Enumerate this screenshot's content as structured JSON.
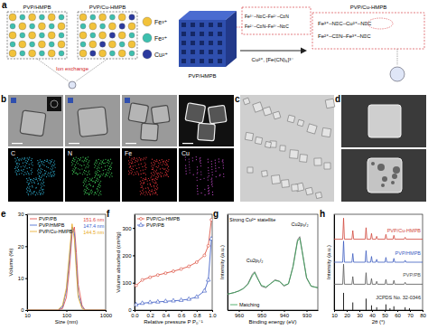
{
  "panel_labels": [
    "a",
    "b",
    "c",
    "d",
    "e",
    "f",
    "g",
    "h"
  ],
  "schematic": {
    "left_labels": [
      "PVP/HMPB",
      "PVP/Cu-HMPB"
    ],
    "ion_exchange": "Ion exchange",
    "legend": [
      {
        "label": "Fe³⁺",
        "color": "#f2c23a"
      },
      {
        "label": "Fe²⁺",
        "color": "#3dbfae"
      },
      {
        "label": "Cu²⁺",
        "color": "#2b3a9e"
      }
    ],
    "cube_label": "PVP/HMPB",
    "arrow_label": "Cu²⁺, [Fe(CN)₆]³⁻",
    "product_label": "PVP/Cu-HMPB",
    "structures_left": [
      "Fe³⁺–N≡C–Fe²⁺–C≡N",
      "Fe²⁺–C≡N–Fe³⁺–N≡C"
    ],
    "structures_right": [
      "Fe³⁺–N≡C–Cu²⁺–N≡C",
      "Fe²⁺–C≡N–Fe³⁺–N≡C"
    ]
  },
  "eds": [
    {
      "label": "C",
      "color": "#2fb3d6"
    },
    {
      "label": "N",
      "color": "#3fcf5a"
    },
    {
      "label": "Fe",
      "color": "#e8343a"
    },
    {
      "label": "Cu",
      "color": "#c048c8"
    }
  ],
  "chart_data": [
    {
      "type": "line",
      "xlabel": "Size (nm)",
      "ylabel": "Volume (%)",
      "log": "x",
      "xlim": [
        10,
        1000
      ],
      "xticks": [
        10,
        100,
        1000
      ],
      "ylim": [
        0,
        30
      ],
      "yticks": [
        0,
        10,
        20,
        30
      ],
      "legend": "upper left",
      "x": [
        10,
        40,
        60,
        80,
        100,
        120,
        140,
        160,
        180,
        200,
        250,
        300,
        1000
      ],
      "series": [
        {
          "name": "PVP/PB",
          "color": "#e0403a",
          "values": [
            0,
            0,
            0,
            0.5,
            4,
            13,
            24,
            26,
            18,
            8,
            1.5,
            0,
            0
          ]
        },
        {
          "name": "PVP/HMPB",
          "color": "#3a5fcd",
          "values": [
            0,
            0,
            0,
            1,
            6,
            16,
            26,
            24,
            14,
            5,
            1,
            0,
            0
          ]
        },
        {
          "name": "PVP/Cu-HMPB",
          "color": "#e8a820",
          "values": [
            0,
            0,
            0,
            1.5,
            7,
            18,
            27,
            22,
            12,
            4,
            0.5,
            0,
            0
          ]
        }
      ],
      "annotations": [
        "151.6 nm",
        "147.4 nm",
        "144.5 nm"
      ]
    },
    {
      "type": "line",
      "xlabel": "Relative pressure P P₀⁻¹",
      "ylabel": "Volume absorbed (cm³/g)",
      "xlim": [
        0,
        1
      ],
      "xticks": [
        {
          "value": 0,
          "label": "0.0"
        },
        0.2,
        0.4,
        0.6,
        0.8,
        {
          "value": 1,
          "label": "1.0"
        }
      ],
      "ylim": [
        0,
        350
      ],
      "yticks": [
        0,
        100,
        200,
        300
      ],
      "legend": "upper left",
      "x": [
        0.02,
        0.1,
        0.2,
        0.3,
        0.4,
        0.5,
        0.6,
        0.7,
        0.8,
        0.9,
        0.95,
        0.99
      ],
      "series": [
        {
          "name": "PVP/Cu-HMPB",
          "color": "#d9402f",
          "marker": "circle",
          "values": [
            90,
            110,
            120,
            128,
            135,
            142,
            150,
            160,
            175,
            200,
            235,
            330
          ]
        },
        {
          "name": "PVP/PB",
          "color": "#3050c0",
          "marker": "triangle",
          "values": [
            20,
            25,
            28,
            30,
            32,
            34,
            36,
            40,
            48,
            70,
            110,
            260
          ]
        }
      ]
    },
    {
      "type": "line",
      "xlabel": "Binding energy (eV)",
      "ylabel": "Intensity (a.u.)",
      "xlim": [
        965,
        925
      ],
      "xticks": [
        960,
        950,
        940,
        930
      ],
      "ylim": [
        0,
        120
      ],
      "tick_labels": "x",
      "legend": "lower left",
      "x": [
        965,
        962,
        960,
        958,
        956,
        954,
        953,
        952,
        950,
        948,
        946,
        944,
        942,
        940,
        938,
        936,
        934,
        933,
        932,
        930,
        928,
        925
      ],
      "series": [
        {
          "color": "#606060",
          "values": [
            20,
            22,
            24,
            27,
            33,
            45,
            48,
            42,
            30,
            28,
            33,
            38,
            36,
            30,
            33,
            55,
            88,
            92,
            75,
            40,
            30,
            28
          ]
        },
        {
          "name": "Matching",
          "color": "#2e9e4f",
          "values": [
            20,
            22,
            24,
            27,
            32,
            43,
            47,
            41,
            31,
            29,
            33,
            37,
            36,
            31,
            33,
            54,
            86,
            90,
            74,
            41,
            30,
            28
          ]
        }
      ],
      "annotations": [
        "Strong Cu²⁺ statellite",
        "Cu2p₁/₂",
        "Cu2p₃/₂"
      ]
    },
    {
      "type": "line",
      "xlabel": "2θ (°)",
      "ylabel": "Intensity (a.u.)",
      "xlim": [
        10,
        80
      ],
      "xticks": [
        10,
        20,
        30,
        40,
        50,
        60,
        70,
        80
      ],
      "ylim": [
        0,
        100
      ],
      "tick_labels": "x",
      "legend": "inline",
      "x": [
        10,
        16.8,
        17.5,
        18.2,
        24.1,
        24.8,
        25.5,
        34.6,
        35.3,
        36,
        38.9,
        39.6,
        40.3,
        43,
        43.7,
        44.4,
        50.3,
        51,
        51.7,
        56.6,
        57.3,
        58,
        65.5,
        66.2,
        66.9,
        80
      ],
      "series": [
        {
          "name": "PVP/Cu-HMPB",
          "color": "#d0453a",
          "values": [
            74,
            74,
            96,
            74,
            74,
            83,
            74,
            74,
            86,
            74,
            74,
            80,
            74,
            74,
            77,
            74,
            74,
            79,
            74,
            74,
            78,
            74,
            74,
            76,
            74,
            74
          ]
        },
        {
          "name": "PVP/HMPB",
          "color": "#3b5bbf",
          "values": [
            50,
            50,
            72,
            50,
            50,
            59,
            50,
            50,
            62,
            50,
            50,
            56,
            50,
            50,
            53,
            50,
            50,
            55,
            50,
            50,
            54,
            50,
            50,
            52,
            50,
            50
          ]
        },
        {
          "name": "PVP/PB",
          "color": "#555555",
          "values": [
            27,
            27,
            48,
            27,
            27,
            35,
            27,
            27,
            39,
            27,
            27,
            33,
            27,
            27,
            30,
            27,
            27,
            32,
            27,
            27,
            31,
            27,
            27,
            29,
            27,
            27
          ]
        },
        {
          "name": "JCPDS No. 32-0346",
          "type": "bar",
          "color": "#222222",
          "x": [
            17.5,
            24.8,
            35.3,
            39.6,
            43.7,
            51,
            54.2,
            57.3,
            66.2,
            69.6
          ],
          "values": [
            18,
            8,
            12,
            5,
            3,
            6,
            2,
            4,
            3,
            2
          ]
        }
      ]
    }
  ]
}
